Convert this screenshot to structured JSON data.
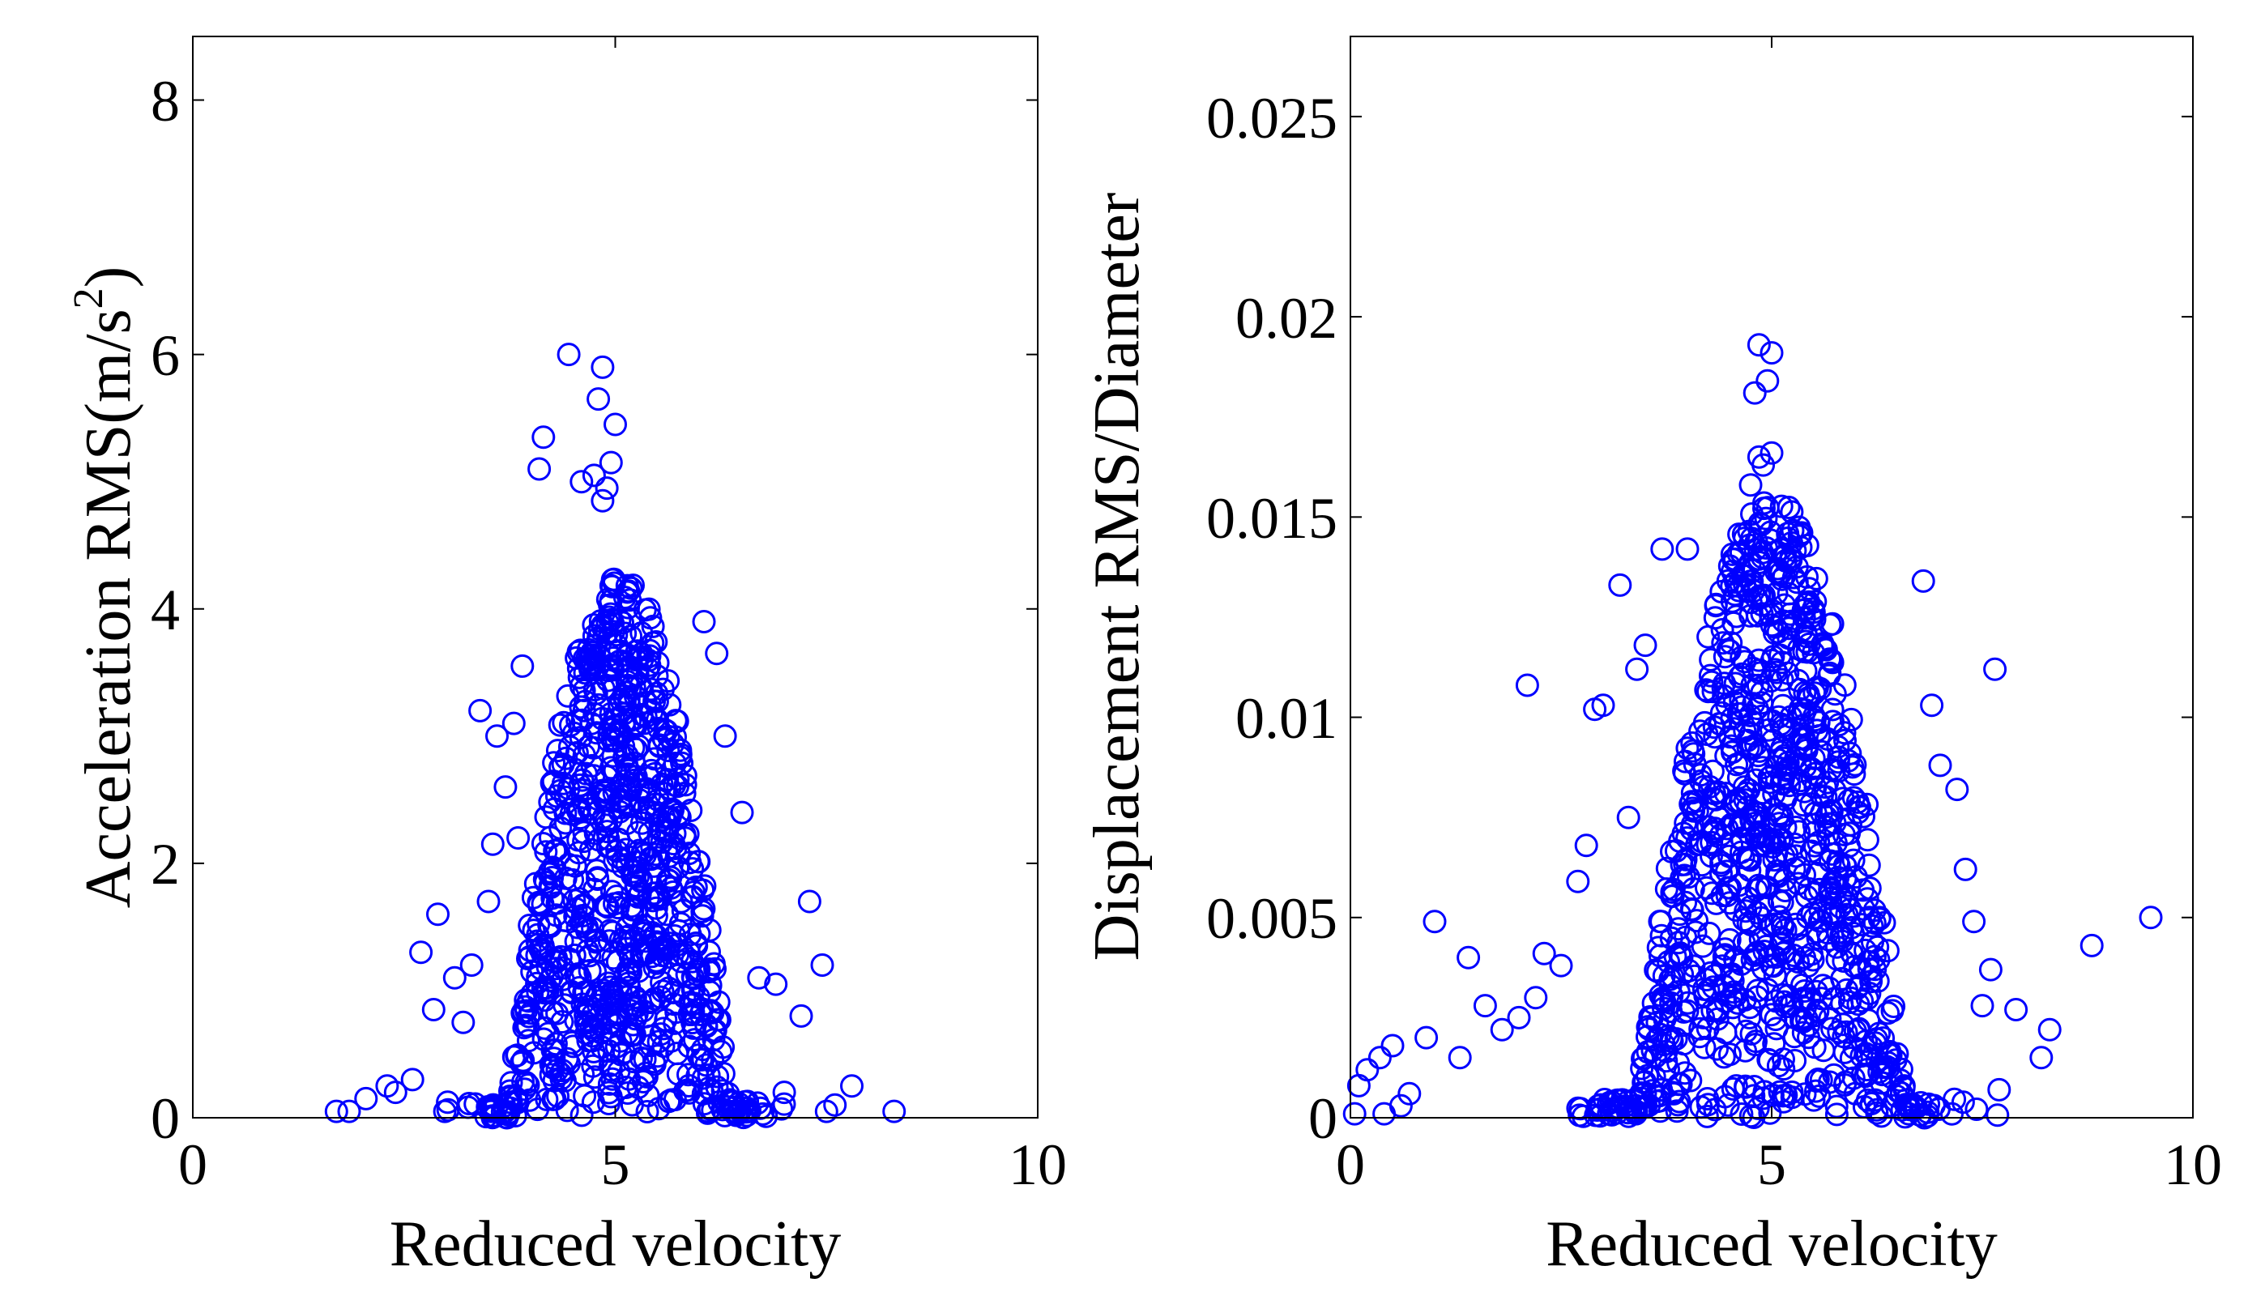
{
  "chart_data": [
    {
      "type": "scatter",
      "marker": "open-circle",
      "color": "#0000ff",
      "xlabel": "Reduced velocity",
      "ylabel_main": "Acceleration RMS(m/s",
      "ylabel_sup": "2",
      "ylabel_close": ")",
      "xlim": [
        0,
        10
      ],
      "ylim": [
        0,
        8.5
      ],
      "xticks": [
        0,
        5,
        10
      ],
      "xtick_labels": [
        "0",
        "5",
        "10"
      ],
      "yticks": [
        0,
        2,
        4,
        6,
        8
      ],
      "ytick_labels": [
        "0",
        "2",
        "4",
        "6",
        "8"
      ],
      "cloud": {
        "center_x": 5.05,
        "spread_x": 0.7,
        "peak_y": 4.3,
        "n_points": 900
      },
      "points": [
        [
          4.45,
          6.0
        ],
        [
          4.85,
          5.9
        ],
        [
          4.8,
          5.65
        ],
        [
          5.0,
          5.45
        ],
        [
          4.15,
          5.35
        ],
        [
          4.1,
          5.1
        ],
        [
          4.95,
          5.15
        ],
        [
          4.6,
          5.0
        ],
        [
          4.75,
          5.05
        ],
        [
          4.85,
          4.85
        ],
        [
          4.9,
          4.95
        ],
        [
          1.7,
          0.05
        ],
        [
          1.85,
          0.05
        ],
        [
          2.05,
          0.15
        ],
        [
          2.3,
          0.25
        ],
        [
          2.4,
          0.2
        ],
        [
          2.6,
          0.3
        ],
        [
          2.7,
          1.3
        ],
        [
          2.85,
          0.85
        ],
        [
          2.9,
          1.6
        ],
        [
          3.1,
          1.1
        ],
        [
          3.2,
          0.75
        ],
        [
          3.3,
          1.2
        ],
        [
          3.4,
          3.2
        ],
        [
          3.5,
          1.7
        ],
        [
          3.55,
          2.15
        ],
        [
          3.6,
          3.0
        ],
        [
          3.7,
          2.6
        ],
        [
          3.8,
          3.1
        ],
        [
          3.85,
          2.2
        ],
        [
          3.9,
          3.55
        ],
        [
          6.5,
          2.4
        ],
        [
          6.7,
          1.1
        ],
        [
          6.9,
          1.05
        ],
        [
          7.0,
          0.2
        ],
        [
          7.2,
          0.8
        ],
        [
          7.3,
          1.7
        ],
        [
          7.45,
          1.2
        ],
        [
          7.5,
          0.05
        ],
        [
          7.6,
          0.1
        ],
        [
          7.8,
          0.25
        ],
        [
          8.3,
          0.05
        ],
        [
          6.2,
          3.65
        ],
        [
          6.3,
          3.0
        ],
        [
          6.05,
          3.9
        ]
      ]
    },
    {
      "type": "scatter",
      "marker": "open-circle",
      "color": "#0000ff",
      "xlabel": "Reduced velocity",
      "ylabel": "Displacement RMS/Diameter",
      "xlim": [
        0,
        10
      ],
      "ylim": [
        0,
        0.027
      ],
      "xticks": [
        0,
        5,
        10
      ],
      "xtick_labels": [
        "0",
        "5",
        "10"
      ],
      "yticks": [
        0,
        0.005,
        0.01,
        0.015,
        0.02,
        0.025
      ],
      "ytick_labels": [
        "0",
        "0.005",
        "0.01",
        "0.015",
        "0.02",
        "0.025"
      ],
      "cloud": {
        "center_x": 5.0,
        "spread_x": 0.85,
        "peak_y": 0.0155,
        "n_points": 1000
      },
      "points": [
        [
          4.85,
          0.0193
        ],
        [
          5.0,
          0.0191
        ],
        [
          4.8,
          0.0181
        ],
        [
          4.95,
          0.0184
        ],
        [
          4.85,
          0.0165
        ],
        [
          4.9,
          0.0163
        ],
        [
          5.0,
          0.0166
        ],
        [
          4.75,
          0.0158
        ],
        [
          0.1,
          0.0008
        ],
        [
          0.2,
          0.0012
        ],
        [
          0.35,
          0.0015
        ],
        [
          0.5,
          0.0018
        ],
        [
          0.7,
          0.0006
        ],
        [
          0.9,
          0.002
        ],
        [
          1.0,
          0.0049
        ],
        [
          1.3,
          0.0015
        ],
        [
          1.4,
          0.004
        ],
        [
          1.6,
          0.0028
        ],
        [
          1.8,
          0.0022
        ],
        [
          2.0,
          0.0025
        ],
        [
          2.1,
          0.0108
        ],
        [
          2.2,
          0.003
        ],
        [
          2.3,
          0.0041
        ],
        [
          2.5,
          0.0038
        ],
        [
          2.7,
          0.0059
        ],
        [
          2.8,
          0.0068
        ],
        [
          2.9,
          0.0102
        ],
        [
          3.0,
          0.0103
        ],
        [
          3.2,
          0.0133
        ],
        [
          3.3,
          0.0075
        ],
        [
          3.4,
          0.0112
        ],
        [
          3.5,
          0.0118
        ],
        [
          3.7,
          0.0142
        ],
        [
          4.0,
          0.0142
        ],
        [
          6.8,
          0.0134
        ],
        [
          6.9,
          0.0103
        ],
        [
          7.0,
          0.0088
        ],
        [
          7.2,
          0.0082
        ],
        [
          7.3,
          0.0062
        ],
        [
          7.4,
          0.0049
        ],
        [
          7.5,
          0.0028
        ],
        [
          7.6,
          0.0037
        ],
        [
          7.65,
          0.0112
        ],
        [
          7.7,
          0.0007
        ],
        [
          7.9,
          0.0027
        ],
        [
          8.2,
          0.0015
        ],
        [
          8.3,
          0.0022
        ],
        [
          8.8,
          0.0043
        ],
        [
          9.5,
          0.005
        ],
        [
          0.05,
          0.0001
        ],
        [
          0.4,
          0.0001
        ],
        [
          0.6,
          0.0003
        ]
      ]
    }
  ]
}
